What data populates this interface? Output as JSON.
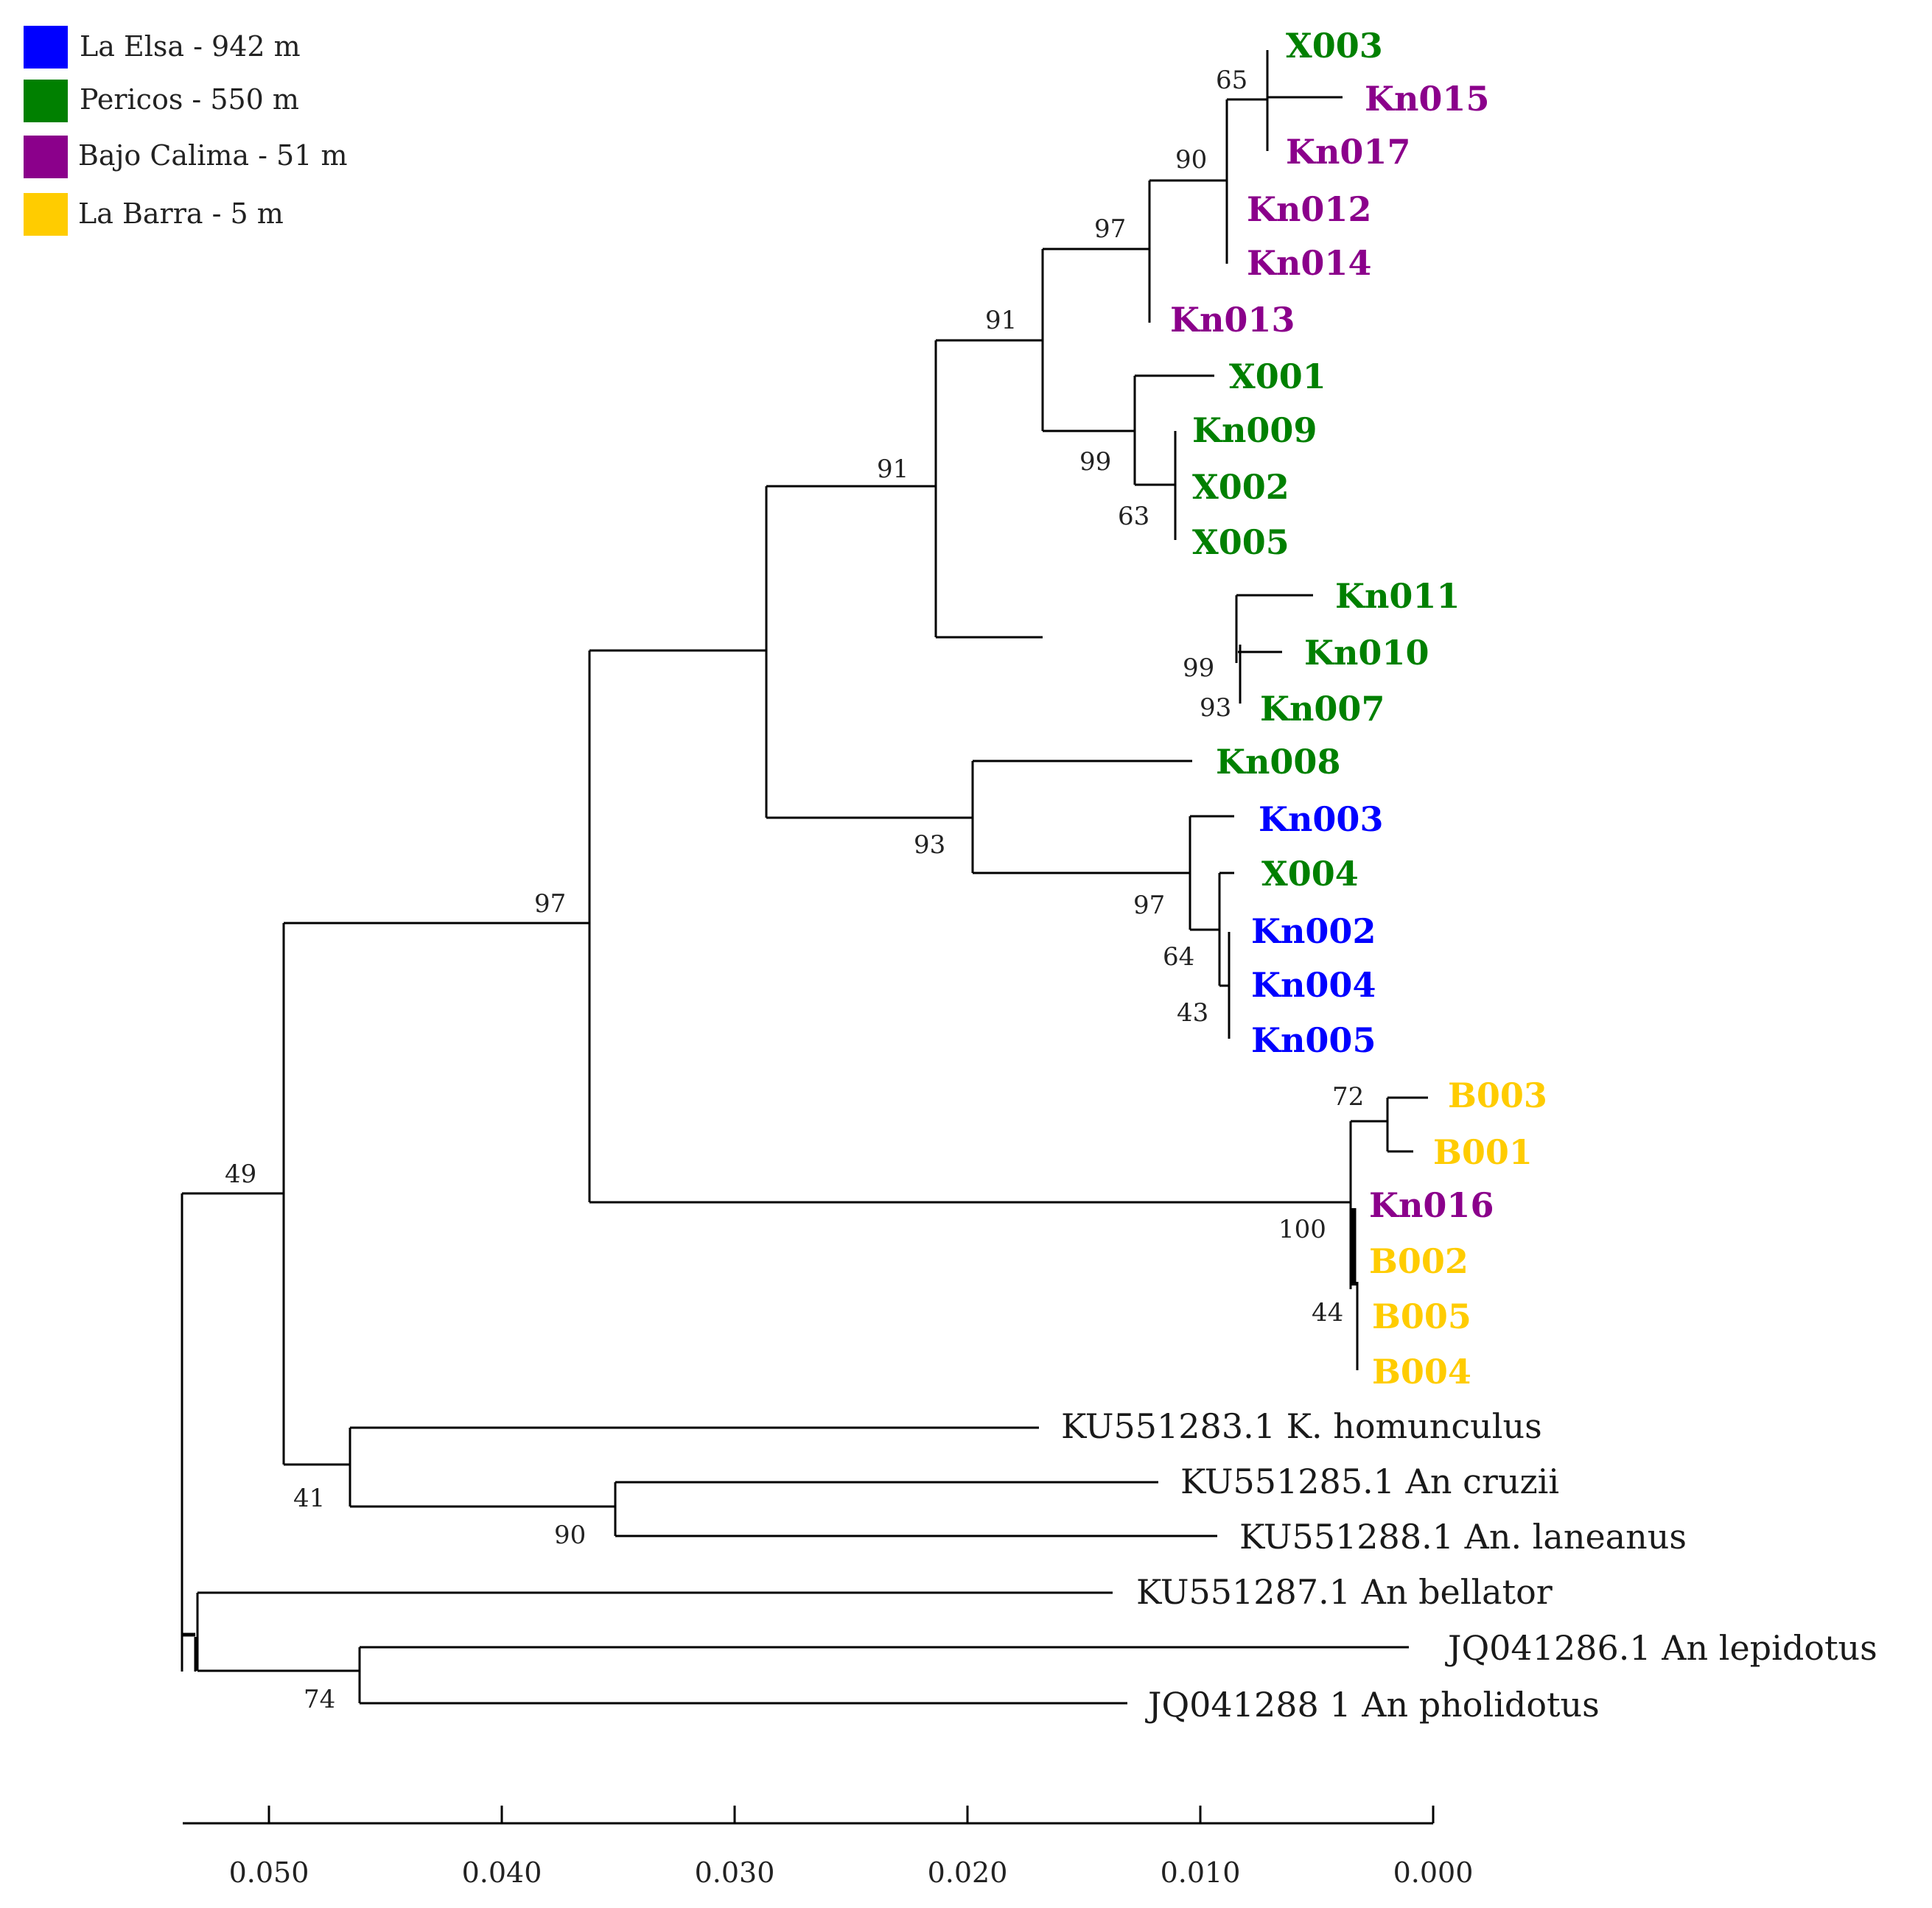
{
  "colors": {
    "la_elsa": "#0000ff",
    "pericos": "#008000",
    "bajo_calima": "#8b008b",
    "la_barra": "#ffcc00",
    "outgroup": "#1a1a1a"
  },
  "legend": [
    {
      "label": "La Elsa - 942 m",
      "color": "#0000ff"
    },
    {
      "label": "Pericos - 550 m",
      "color": "#008000"
    },
    {
      "label": "Bajo Calima - 51 m",
      "color": "#8b008b"
    },
    {
      "label": "La Barra - 5 m",
      "color": "#ffcc00"
    }
  ],
  "leaves": [
    {
      "id": "X003",
      "label": "X003",
      "group": "pericos"
    },
    {
      "id": "Kn015",
      "label": "Kn015",
      "group": "bajo_calima"
    },
    {
      "id": "Kn017",
      "label": "Kn017",
      "group": "bajo_calima"
    },
    {
      "id": "Kn012",
      "label": "Kn012",
      "group": "bajo_calima"
    },
    {
      "id": "Kn014",
      "label": "Kn014",
      "group": "bajo_calima"
    },
    {
      "id": "Kn013",
      "label": "Kn013",
      "group": "bajo_calima"
    },
    {
      "id": "X001",
      "label": "X001",
      "group": "pericos"
    },
    {
      "id": "Kn009",
      "label": "Kn009",
      "group": "pericos"
    },
    {
      "id": "X002",
      "label": "X002",
      "group": "pericos"
    },
    {
      "id": "X005",
      "label": "X005",
      "group": "pericos"
    },
    {
      "id": "Kn011",
      "label": "Kn011",
      "group": "pericos"
    },
    {
      "id": "Kn010",
      "label": "Kn010",
      "group": "pericos"
    },
    {
      "id": "Kn007",
      "label": "Kn007",
      "group": "pericos"
    },
    {
      "id": "Kn008",
      "label": "Kn008",
      "group": "pericos"
    },
    {
      "id": "Kn003",
      "label": "Kn003",
      "group": "la_elsa"
    },
    {
      "id": "X004",
      "label": "X004",
      "group": "pericos"
    },
    {
      "id": "Kn002",
      "label": "Kn002",
      "group": "la_elsa"
    },
    {
      "id": "Kn004",
      "label": "Kn004",
      "group": "la_elsa"
    },
    {
      "id": "Kn005",
      "label": "Kn005",
      "group": "la_elsa"
    },
    {
      "id": "B003",
      "label": "B003",
      "group": "la_barra"
    },
    {
      "id": "B001",
      "label": "B001",
      "group": "la_barra"
    },
    {
      "id": "Kn016",
      "label": "Kn016",
      "group": "bajo_calima"
    },
    {
      "id": "B002",
      "label": "B002",
      "group": "la_barra"
    },
    {
      "id": "B005",
      "label": "B005",
      "group": "la_barra"
    },
    {
      "id": "B004",
      "label": "B004",
      "group": "la_barra"
    },
    {
      "id": "KU551283",
      "label": "KU551283.1 K. homunculus",
      "group": "outgroup"
    },
    {
      "id": "KU551285",
      "label": "KU551285.1 An cruzii",
      "group": "outgroup"
    },
    {
      "id": "KU551288",
      "label": "KU551288.1 An. laneanus",
      "group": "outgroup"
    },
    {
      "id": "KU551287",
      "label": "KU551287.1 An bellator",
      "group": "outgroup"
    },
    {
      "id": "JQ041286",
      "label": "JQ041286.1 An lepidotus",
      "group": "outgroup"
    },
    {
      "id": "JQ041288",
      "label": "JQ041288 1 An pholidotus",
      "group": "outgroup"
    }
  ],
  "bootstrap": {
    "n_x003_kn015_kn017": "65",
    "n_bajo_calima_clade": "90",
    "n_with_kn013": "97",
    "n_upper_clade": "91",
    "n_x001_group": "99",
    "n_kn009_x002_x005": "63",
    "n_upper_major": "91",
    "n_kn011_group": "99",
    "n_kn010_kn007": "93",
    "n_kn008_group": "93",
    "n_kn003_group": "97",
    "n_kn002_group": "64",
    "n_kn004_kn005": "43",
    "n_b003_b001": "72",
    "n_la_barra_clade": "100",
    "n_b005_b004": "44",
    "n_ingroup": "97",
    "n_root_upper": "49",
    "n_homunculus_group": "41",
    "n_cruzii_laneanus": "90",
    "n_lepidotus_pholidotus": "74"
  },
  "scale": {
    "ticks": [
      {
        "value": 0.05,
        "label": "0.050"
      },
      {
        "value": 0.04,
        "label": "0.040"
      },
      {
        "value": 0.03,
        "label": "0.030"
      },
      {
        "value": 0.02,
        "label": "0.020"
      },
      {
        "value": 0.01,
        "label": "0.010"
      },
      {
        "value": 0.0,
        "label": "0.000"
      }
    ]
  }
}
